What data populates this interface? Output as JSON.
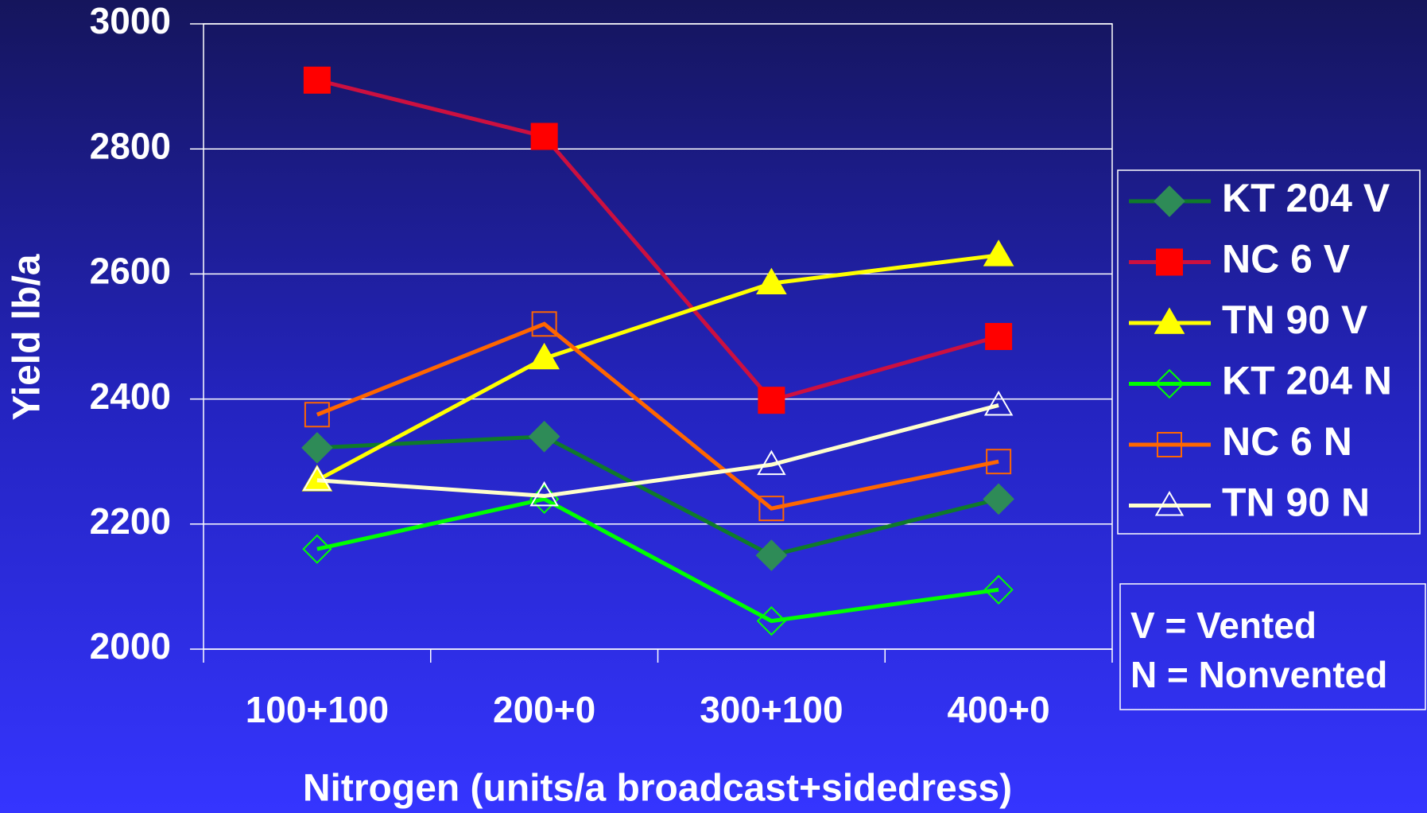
{
  "chart_data": {
    "type": "line",
    "x_label": "Nitrogen (units/a broadcast+sidedress)",
    "y_label": "Yield lb/a",
    "categories": [
      "100+100",
      "200+0",
      "300+100",
      "400+0"
    ],
    "ylim": [
      2000,
      3000
    ],
    "yticks": [
      2000,
      2200,
      2400,
      2600,
      2800,
      3000
    ],
    "grid": true,
    "legend": "right",
    "series": [
      {
        "name": "KT 204 V",
        "color": "#0f7a2a",
        "marker": "diamond",
        "marker_color": "#2e8b57",
        "filled": true,
        "values": [
          2322,
          2340,
          2150,
          2240
        ]
      },
      {
        "name": "NC 6 V",
        "color": "#cc1040",
        "marker": "square",
        "marker_color": "#ff0000",
        "filled": true,
        "values": [
          2910,
          2820,
          2398,
          2500
        ]
      },
      {
        "name": "TN 90 V",
        "color": "#ffff00",
        "marker": "triangle",
        "marker_color": "#ffff00",
        "filled": true,
        "values": [
          2270,
          2465,
          2585,
          2630
        ]
      },
      {
        "name": "KT 204 N",
        "color": "#00ff00",
        "marker": "diamond",
        "marker_color": "#00ff00",
        "filled": false,
        "values": [
          2160,
          2240,
          2045,
          2095
        ]
      },
      {
        "name": "NC 6 N",
        "color": "#ff6600",
        "marker": "square",
        "marker_color": "#ff6600",
        "filled": false,
        "values": [
          2375,
          2520,
          2225,
          2300
        ]
      },
      {
        "name": "TN 90 N",
        "color": "#ffffcc",
        "marker": "triangle",
        "marker_color": "#ffffff",
        "filled": false,
        "values": [
          2270,
          2245,
          2295,
          2390
        ]
      }
    ],
    "annotations": [
      "V = Vented",
      "N = Nonvented"
    ]
  }
}
